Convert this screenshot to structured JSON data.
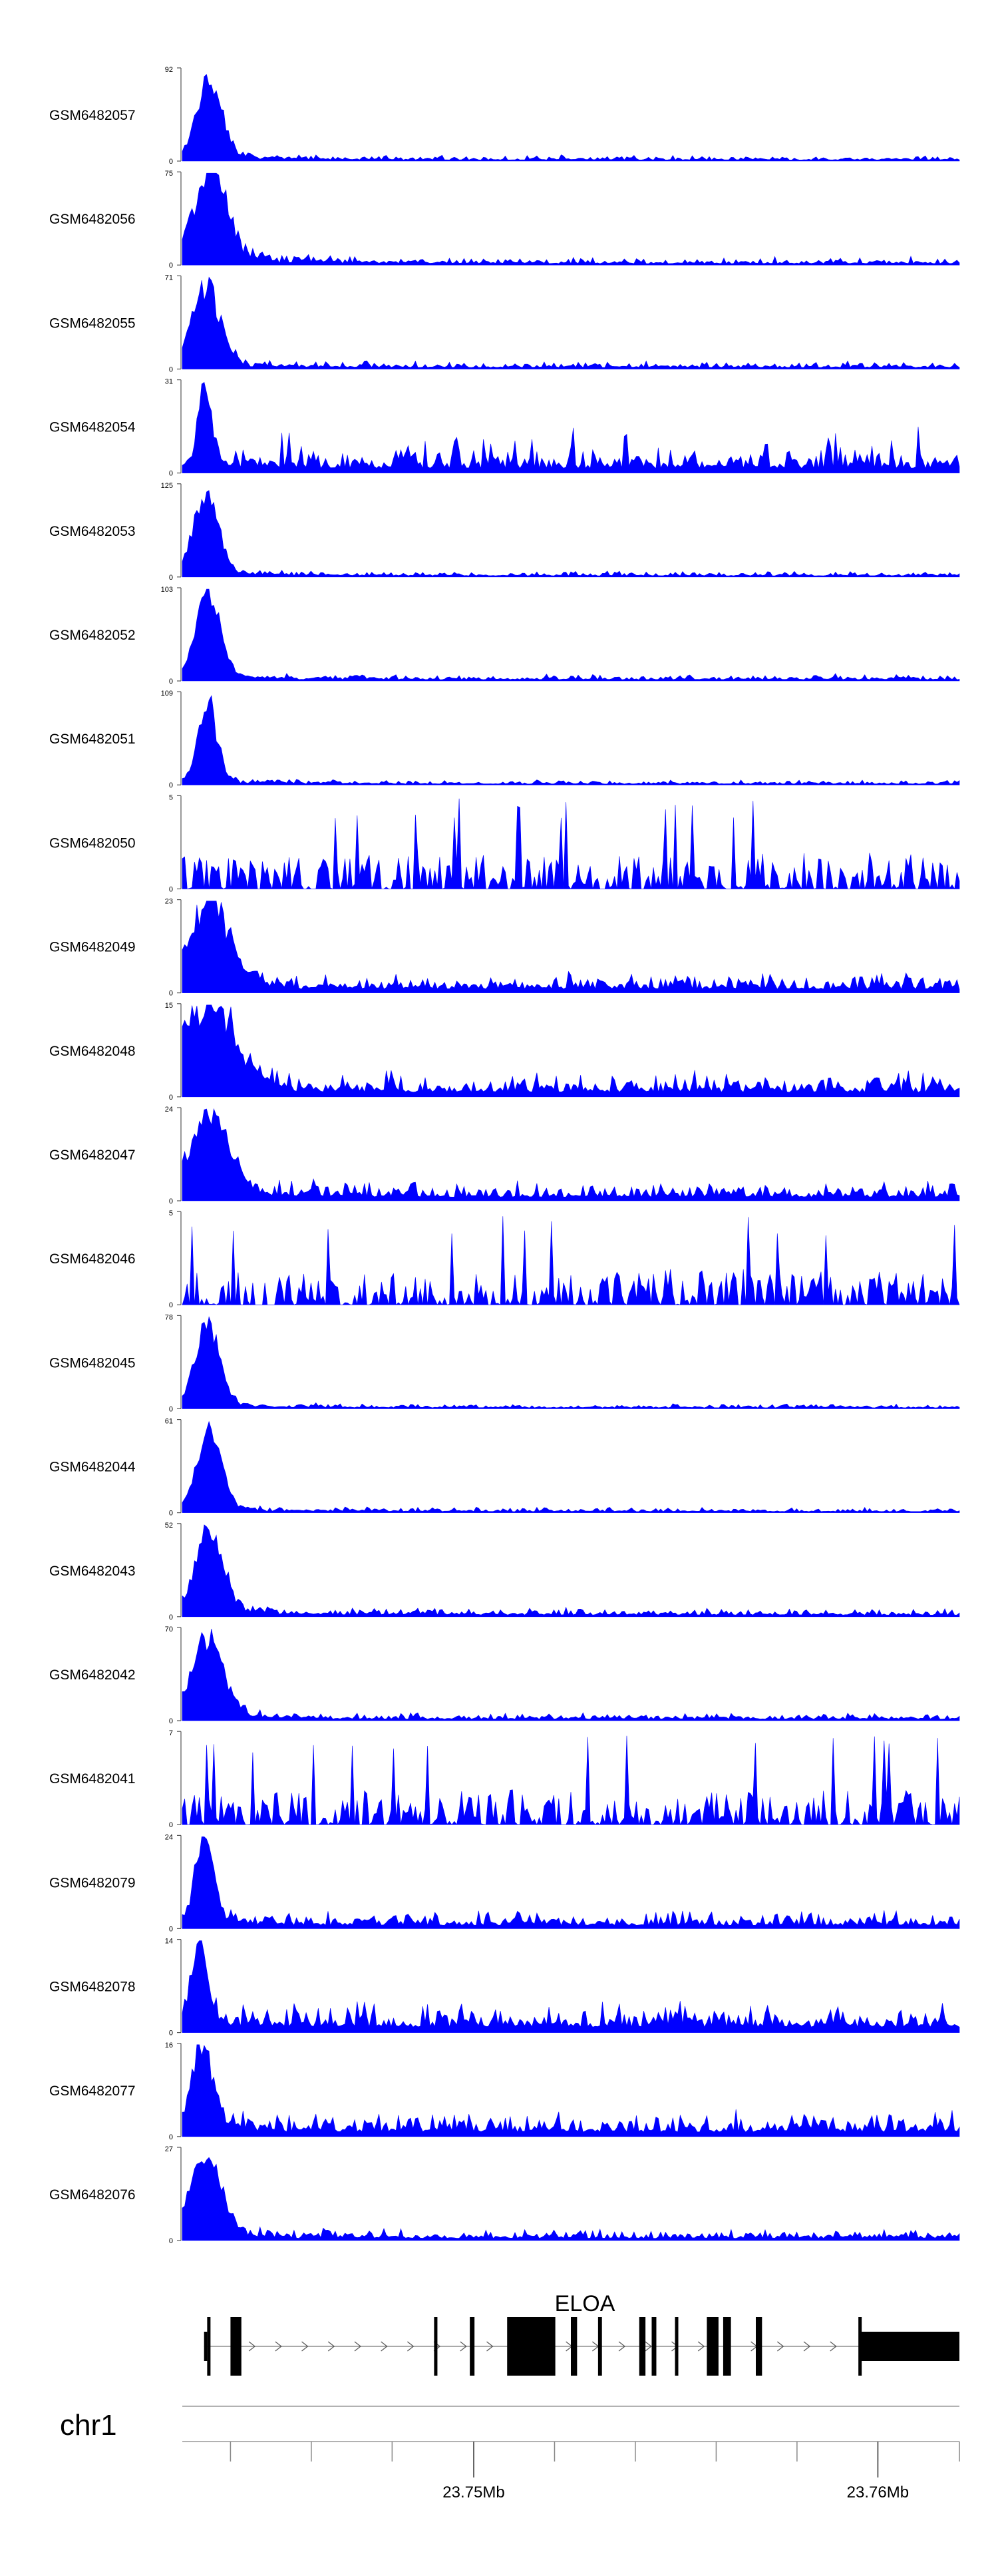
{
  "chart_data": {
    "type": "area",
    "color": "#0000ff",
    "ymin_label": "0",
    "tracks": [
      {
        "name": "GSM6482057",
        "ymax": 92,
        "profile": "peak",
        "seed": 11,
        "peak_pos": 0.034,
        "peak_width": 0.016,
        "bg_level": 0.06,
        "tail": 0.1
      },
      {
        "name": "GSM6482056",
        "ymax": 75,
        "profile": "peak",
        "seed": 12,
        "peak_pos": 0.034,
        "peak_width": 0.022,
        "bg_level": 0.08,
        "tail": 0.35
      },
      {
        "name": "GSM6482055",
        "ymax": 71,
        "profile": "peak",
        "seed": 13,
        "peak_pos": 0.03,
        "peak_width": 0.018,
        "bg_level": 0.08,
        "tail": 0.1
      },
      {
        "name": "GSM6482054",
        "ymax": 31,
        "profile": "spiky",
        "seed": 14,
        "peak_pos": 0.028,
        "peak_width": 0.008,
        "bg_level": 0.25,
        "tail": 0.05
      },
      {
        "name": "GSM6482053",
        "ymax": 125,
        "profile": "peak",
        "seed": 15,
        "peak_pos": 0.03,
        "peak_width": 0.016,
        "bg_level": 0.06,
        "tail": 0.1
      },
      {
        "name": "GSM6482052",
        "ymax": 103,
        "profile": "peak",
        "seed": 16,
        "peak_pos": 0.032,
        "peak_width": 0.016,
        "bg_level": 0.07,
        "tail": 0.08
      },
      {
        "name": "GSM6482051",
        "ymax": 109,
        "profile": "peak",
        "seed": 17,
        "peak_pos": 0.032,
        "peak_width": 0.012,
        "bg_level": 0.05,
        "tail": 0.1
      },
      {
        "name": "GSM6482050",
        "ymax": 5,
        "profile": "noise",
        "seed": 18,
        "peak_pos": 0.03,
        "peak_width": 0.01,
        "bg_level": 0.55,
        "tail": 0.0
      },
      {
        "name": "GSM6482049",
        "ymax": 23,
        "profile": "peak",
        "seed": 19,
        "peak_pos": 0.035,
        "peak_width": 0.025,
        "bg_level": 0.2,
        "tail": 0.15
      },
      {
        "name": "GSM6482048",
        "ymax": 15,
        "profile": "peak",
        "seed": 20,
        "peak_pos": 0.03,
        "peak_width": 0.035,
        "bg_level": 0.25,
        "tail": 0.25
      },
      {
        "name": "GSM6482047",
        "ymax": 24,
        "profile": "peak",
        "seed": 21,
        "peak_pos": 0.035,
        "peak_width": 0.025,
        "bg_level": 0.2,
        "tail": 0.1
      },
      {
        "name": "GSM6482046",
        "ymax": 5,
        "profile": "noise",
        "seed": 22,
        "peak_pos": 0.03,
        "peak_width": 0.01,
        "bg_level": 0.55,
        "tail": 0.0
      },
      {
        "name": "GSM6482045",
        "ymax": 78,
        "profile": "peak",
        "seed": 23,
        "peak_pos": 0.032,
        "peak_width": 0.016,
        "bg_level": 0.05,
        "tail": 0.1
      },
      {
        "name": "GSM6482044",
        "ymax": 61,
        "profile": "peak",
        "seed": 24,
        "peak_pos": 0.034,
        "peak_width": 0.016,
        "bg_level": 0.06,
        "tail": 0.1
      },
      {
        "name": "GSM6482043",
        "ymax": 52,
        "profile": "peak",
        "seed": 25,
        "peak_pos": 0.034,
        "peak_width": 0.018,
        "bg_level": 0.09,
        "tail": 0.15
      },
      {
        "name": "GSM6482042",
        "ymax": 70,
        "profile": "peak",
        "seed": 26,
        "peak_pos": 0.032,
        "peak_width": 0.02,
        "bg_level": 0.08,
        "tail": 0.1
      },
      {
        "name": "GSM6482041",
        "ymax": 7,
        "profile": "noise",
        "seed": 27,
        "peak_pos": 0.03,
        "peak_width": 0.01,
        "bg_level": 0.45,
        "tail": 0.0
      },
      {
        "name": "GSM6482079",
        "ymax": 24,
        "profile": "peak",
        "seed": 28,
        "peak_pos": 0.028,
        "peak_width": 0.012,
        "bg_level": 0.18,
        "tail": 0.1
      },
      {
        "name": "GSM6482078",
        "ymax": 14,
        "profile": "peak",
        "seed": 29,
        "peak_pos": 0.022,
        "peak_width": 0.01,
        "bg_level": 0.3,
        "tail": 0.1
      },
      {
        "name": "GSM6482077",
        "ymax": 16,
        "profile": "peak",
        "seed": 30,
        "peak_pos": 0.026,
        "peak_width": 0.014,
        "bg_level": 0.25,
        "tail": 0.1
      },
      {
        "name": "GSM6482076",
        "ymax": 27,
        "profile": "peak",
        "seed": 31,
        "peak_pos": 0.03,
        "peak_width": 0.02,
        "bg_level": 0.12,
        "tail": 0.1
      }
    ],
    "gene": {
      "name": "ELOA",
      "exons": [
        [
          0.032,
          0.036
        ],
        [
          0.062,
          0.076
        ],
        [
          0.324,
          0.328
        ],
        [
          0.37,
          0.376
        ],
        [
          0.418,
          0.48
        ],
        [
          0.5,
          0.508
        ],
        [
          0.535,
          0.54
        ],
        [
          0.588,
          0.596
        ],
        [
          0.604,
          0.61
        ],
        [
          0.634,
          0.638
        ],
        [
          0.675,
          0.69
        ],
        [
          0.696,
          0.706
        ],
        [
          0.738,
          0.746
        ],
        [
          0.87,
          0.874
        ],
        [
          0.874,
          1.0
        ]
      ],
      "utrs": [
        [
          0.028,
          0.032
        ]
      ]
    },
    "chromosome": "chr1",
    "axis": {
      "labels": [
        {
          "label": "23.75Mb",
          "frac": 0.375
        },
        {
          "label": "23.76Mb",
          "frac": 0.895
        }
      ],
      "ticks": [
        0.062,
        0.166,
        0.27,
        0.375,
        0.479,
        0.583,
        0.687,
        0.791,
        0.895,
        1.0
      ]
    }
  }
}
